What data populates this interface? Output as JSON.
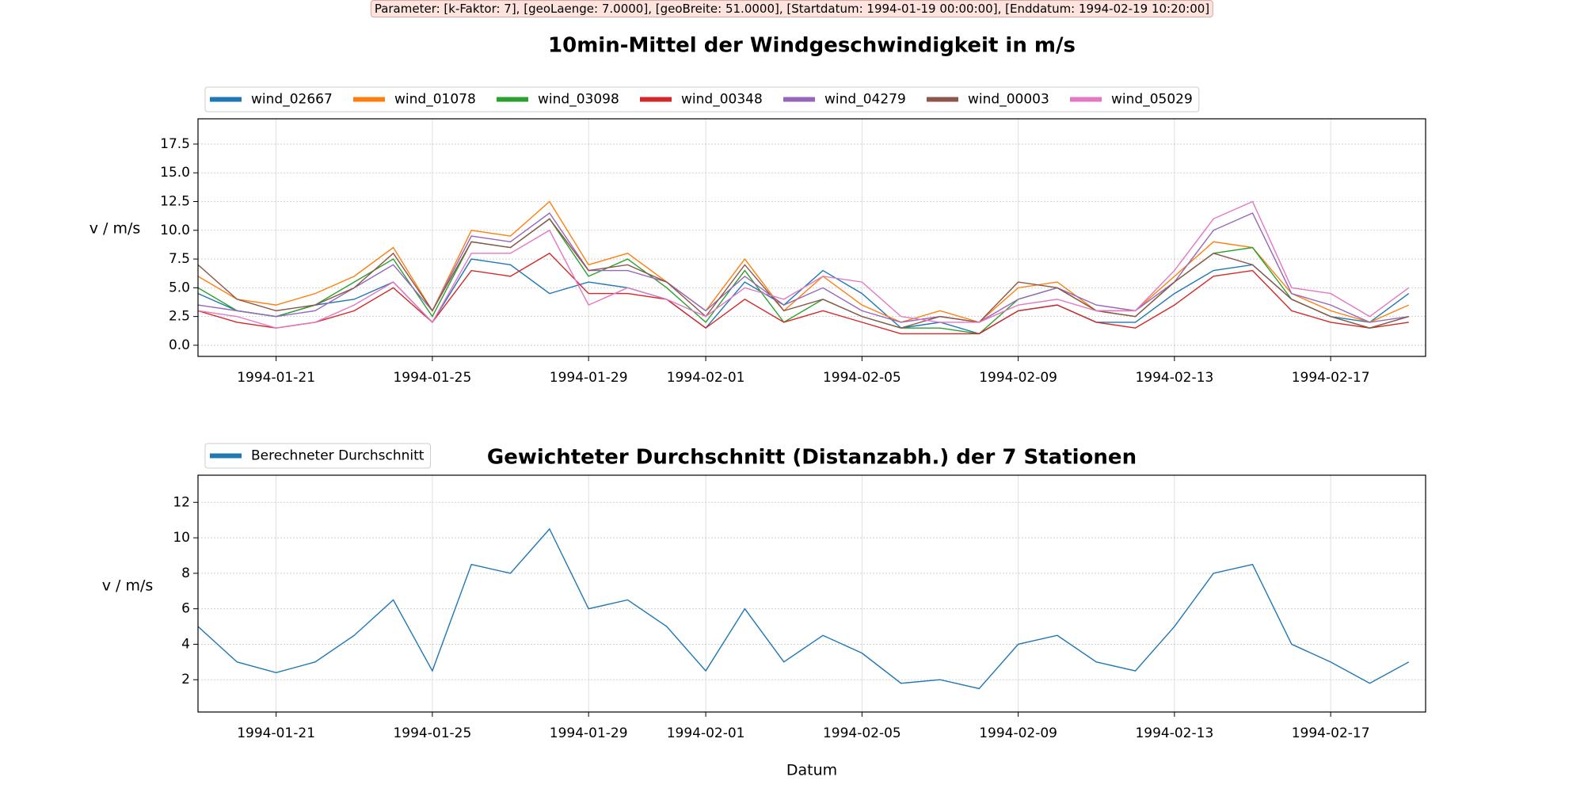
{
  "chart_data": [
    {
      "type": "line",
      "annotation": "Parameter: [k-Faktor: 7], [geoLaenge: 7.0000], [geoBreite: 51.0000], [Startdatum: 1994-01-19 00:00:00], [Enddatum: 1994-02-19 10:20:00]",
      "title": "10min-Mittel der Windgeschwindigkeit in m/s",
      "ylabel": "v / m/s",
      "x": [
        "1994-01-19",
        "1994-01-20",
        "1994-01-21",
        "1994-01-22",
        "1994-01-23",
        "1994-01-24",
        "1994-01-25",
        "1994-01-26",
        "1994-01-27",
        "1994-01-28",
        "1994-01-29",
        "1994-01-30",
        "1994-01-31",
        "1994-02-01",
        "1994-02-02",
        "1994-02-03",
        "1994-02-04",
        "1994-02-05",
        "1994-02-06",
        "1994-02-07",
        "1994-02-08",
        "1994-02-09",
        "1994-02-10",
        "1994-02-11",
        "1994-02-12",
        "1994-02-13",
        "1994-02-14",
        "1994-02-15",
        "1994-02-16",
        "1994-02-17",
        "1994-02-18",
        "1994-02-19"
      ],
      "series": [
        {
          "name": "wind_02667",
          "color": "#1f77b4",
          "values": [
            4.5,
            3.0,
            2.5,
            3.5,
            4.0,
            5.5,
            2.0,
            7.5,
            7.0,
            4.5,
            5.5,
            5.0,
            4.0,
            1.5,
            5.5,
            3.5,
            6.5,
            4.5,
            1.5,
            2.0,
            1.0,
            3.0,
            3.5,
            2.0,
            2.0,
            4.5,
            6.5,
            7.0,
            4.0,
            2.5,
            2.0,
            4.5
          ]
        },
        {
          "name": "wind_01078",
          "color": "#ff7f0e",
          "values": [
            6.0,
            4.0,
            3.5,
            4.5,
            6.0,
            8.5,
            3.0,
            10.0,
            9.5,
            12.5,
            7.0,
            8.0,
            5.5,
            3.0,
            7.5,
            3.0,
            6.0,
            3.5,
            2.0,
            3.0,
            2.0,
            5.0,
            5.5,
            3.0,
            3.0,
            6.0,
            9.0,
            8.5,
            4.5,
            3.0,
            2.0,
            3.5
          ]
        },
        {
          "name": "wind_03098",
          "color": "#2ca02c",
          "values": [
            5.0,
            3.0,
            2.5,
            3.5,
            5.5,
            7.5,
            2.5,
            9.0,
            8.5,
            11.0,
            6.0,
            7.5,
            5.0,
            2.0,
            6.5,
            2.0,
            4.0,
            2.5,
            1.5,
            1.5,
            1.0,
            4.0,
            5.0,
            3.0,
            2.5,
            5.5,
            8.0,
            8.5,
            4.0,
            2.5,
            1.5,
            2.5
          ]
        },
        {
          "name": "wind_00348",
          "color": "#d62728",
          "values": [
            3.0,
            2.0,
            1.5,
            2.0,
            3.0,
            5.0,
            2.0,
            6.5,
            6.0,
            8.0,
            4.5,
            4.5,
            4.0,
            1.5,
            4.0,
            2.0,
            3.0,
            2.0,
            1.0,
            1.0,
            1.0,
            3.0,
            3.5,
            2.0,
            1.5,
            3.5,
            6.0,
            6.5,
            3.0,
            2.0,
            1.5,
            2.0
          ]
        },
        {
          "name": "wind_04279",
          "color": "#9467bd",
          "values": [
            3.5,
            3.0,
            2.5,
            3.0,
            5.0,
            7.0,
            3.0,
            9.5,
            9.0,
            11.5,
            6.5,
            6.5,
            5.5,
            3.0,
            6.0,
            3.5,
            5.0,
            3.0,
            2.0,
            2.5,
            2.0,
            4.0,
            5.0,
            3.5,
            3.0,
            5.5,
            10.0,
            11.5,
            4.5,
            3.5,
            2.0,
            2.5
          ]
        },
        {
          "name": "wind_00003",
          "color": "#8c564b",
          "values": [
            7.0,
            4.0,
            3.0,
            3.5,
            5.0,
            8.0,
            3.0,
            9.0,
            8.5,
            11.0,
            6.5,
            7.0,
            5.5,
            2.5,
            7.0,
            3.0,
            4.0,
            2.5,
            1.5,
            2.5,
            2.0,
            5.5,
            5.0,
            3.0,
            2.5,
            5.5,
            8.0,
            7.0,
            4.0,
            2.5,
            1.5,
            2.5
          ]
        },
        {
          "name": "wind_05029",
          "color": "#e377c2",
          "values": [
            3.0,
            2.5,
            1.5,
            2.0,
            3.5,
            5.5,
            2.0,
            8.0,
            8.0,
            10.0,
            3.5,
            5.0,
            4.0,
            2.5,
            5.0,
            4.0,
            6.0,
            5.5,
            2.5,
            2.0,
            2.0,
            3.5,
            4.0,
            3.0,
            3.0,
            6.5,
            11.0,
            12.5,
            5.0,
            4.5,
            2.5,
            5.0
          ]
        }
      ],
      "xlim": [
        "1994-01-19T00:00",
        "1994-02-19T10:20"
      ],
      "xticks": [
        "1994-01-21",
        "1994-01-25",
        "1994-01-29",
        "1994-02-01",
        "1994-02-05",
        "1994-02-09",
        "1994-02-13",
        "1994-02-17"
      ],
      "ylim": [
        -0.97,
        19.7
      ],
      "yticks": [
        {
          "value": 0,
          "label": "0.0"
        },
        2.5,
        {
          "value": 5,
          "label": "5.0"
        },
        7.5,
        {
          "value": 10,
          "label": "10.0"
        },
        12.5,
        {
          "value": 15,
          "label": "15.0"
        },
        17.5
      ],
      "grid": true,
      "legend": "upper left"
    },
    {
      "type": "line",
      "title": "Gewichteter Durchschnitt (Distanzabh.) der 7 Stationen",
      "ylabel": "v / m/s",
      "xlabel": "Datum",
      "x": [
        "1994-01-19",
        "1994-01-20",
        "1994-01-21",
        "1994-01-22",
        "1994-01-23",
        "1994-01-24",
        "1994-01-25",
        "1994-01-26",
        "1994-01-27",
        "1994-01-28",
        "1994-01-29",
        "1994-01-30",
        "1994-01-31",
        "1994-02-01",
        "1994-02-02",
        "1994-02-03",
        "1994-02-04",
        "1994-02-05",
        "1994-02-06",
        "1994-02-07",
        "1994-02-08",
        "1994-02-09",
        "1994-02-10",
        "1994-02-11",
        "1994-02-12",
        "1994-02-13",
        "1994-02-14",
        "1994-02-15",
        "1994-02-16",
        "1994-02-17",
        "1994-02-18",
        "1994-02-19"
      ],
      "series": [
        {
          "name": "Berechneter Durchschnitt",
          "color": "#1f77b4",
          "values": [
            5.0,
            3.0,
            2.4,
            3.0,
            4.5,
            6.5,
            2.5,
            8.5,
            8.0,
            10.5,
            6.0,
            6.5,
            5.0,
            2.5,
            6.0,
            3.0,
            4.5,
            3.5,
            1.8,
            2.0,
            1.5,
            4.0,
            4.5,
            3.0,
            2.5,
            5.0,
            8.0,
            8.5,
            4.0,
            3.0,
            1.8,
            3.0
          ]
        }
      ],
      "xlim": [
        "1994-01-19T00:00",
        "1994-02-19T10:20"
      ],
      "xticks": [
        "1994-01-21",
        "1994-01-25",
        "1994-01-29",
        "1994-02-01",
        "1994-02-05",
        "1994-02-09",
        "1994-02-13",
        "1994-02-17"
      ],
      "ylim": [
        0.18,
        13.53
      ],
      "yticks": [
        2,
        4,
        6,
        8,
        10,
        12
      ],
      "grid": true,
      "legend": "upper left"
    }
  ]
}
